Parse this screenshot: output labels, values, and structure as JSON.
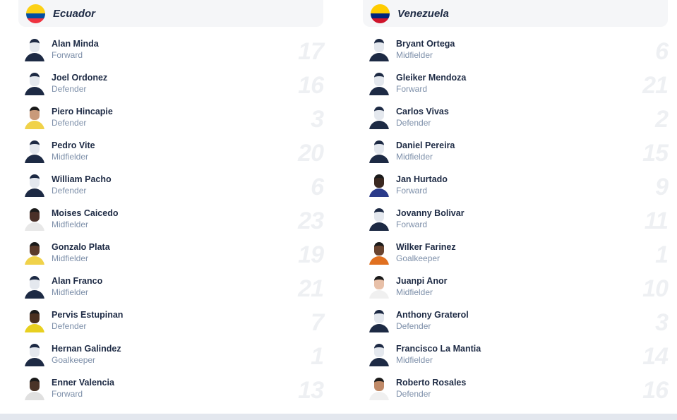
{
  "teams": [
    {
      "name": "Ecuador",
      "flag_colors": [
        "#fcd116",
        "#034ea2",
        "#ef3340"
      ],
      "players": [
        {
          "name": "Alan Minda",
          "position": "Forward",
          "number": "17",
          "photo": false
        },
        {
          "name": "Joel Ordonez",
          "position": "Defender",
          "number": "16",
          "photo": false
        },
        {
          "name": "Piero Hincapie",
          "position": "Defender",
          "number": "3",
          "photo": true,
          "skin": "#c99a7a",
          "jersey": "#f0d24a"
        },
        {
          "name": "Pedro Vite",
          "position": "Midfielder",
          "number": "20",
          "photo": false
        },
        {
          "name": "William Pacho",
          "position": "Defender",
          "number": "6",
          "photo": false
        },
        {
          "name": "Moises Caicedo",
          "position": "Midfielder",
          "number": "23",
          "photo": true,
          "skin": "#4a3028",
          "jersey": "#e8e8e8"
        },
        {
          "name": "Gonzalo Plata",
          "position": "Midfielder",
          "number": "19",
          "photo": true,
          "skin": "#5a3a2a",
          "jersey": "#f0d24a"
        },
        {
          "name": "Alan Franco",
          "position": "Midfielder",
          "number": "21",
          "photo": false
        },
        {
          "name": "Pervis Estupinan",
          "position": "Defender",
          "number": "7",
          "photo": true,
          "skin": "#4a3020",
          "jersey": "#e8d020"
        },
        {
          "name": "Hernan Galindez",
          "position": "Goalkeeper",
          "number": "1",
          "photo": false
        },
        {
          "name": "Enner Valencia",
          "position": "Forward",
          "number": "13",
          "photo": true,
          "skin": "#4a3428",
          "jersey": "#e0e0e0"
        }
      ]
    },
    {
      "name": "Venezuela",
      "flag_colors": [
        "#ffcc00",
        "#00247d",
        "#cf142b"
      ],
      "players": [
        {
          "name": "Bryant Ortega",
          "position": "Midfielder",
          "number": "6",
          "photo": false
        },
        {
          "name": "Gleiker Mendoza",
          "position": "Forward",
          "number": "21",
          "photo": false
        },
        {
          "name": "Carlos Vivas",
          "position": "Defender",
          "number": "2",
          "photo": false
        },
        {
          "name": "Daniel Pereira",
          "position": "Midfielder",
          "number": "15",
          "photo": false
        },
        {
          "name": "Jan Hurtado",
          "position": "Forward",
          "number": "9",
          "photo": true,
          "skin": "#3a2820",
          "jersey": "#2a3a8a"
        },
        {
          "name": "Jovanny Bolivar",
          "position": "Forward",
          "number": "11",
          "photo": false
        },
        {
          "name": "Wilker Farinez",
          "position": "Goalkeeper",
          "number": "1",
          "photo": true,
          "skin": "#6a4430",
          "jersey": "#e07020"
        },
        {
          "name": "Juanpi Anor",
          "position": "Midfielder",
          "number": "10",
          "photo": true,
          "skin": "#e8c0a8",
          "jersey": "#f0f0f0"
        },
        {
          "name": "Anthony Graterol",
          "position": "Defender",
          "number": "3",
          "photo": false
        },
        {
          "name": "Francisco La Mantia",
          "position": "Midfielder",
          "number": "14",
          "photo": false
        },
        {
          "name": "Roberto Rosales",
          "position": "Defender",
          "number": "16",
          "photo": true,
          "skin": "#c08a68",
          "jersey": "#f0f0f0"
        }
      ]
    }
  ]
}
